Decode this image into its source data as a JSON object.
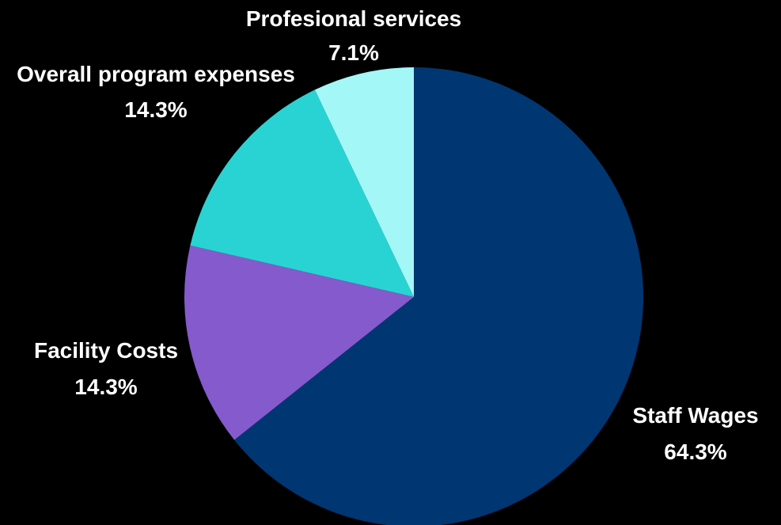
{
  "chart_data": {
    "type": "pie",
    "title": "",
    "start_angle_deg": 0,
    "direction": "clockwise",
    "slices": [
      {
        "label": "Staff Wages",
        "value": 64.3,
        "value_label": "64.3%",
        "color": "#003672"
      },
      {
        "label": "Facility Costs",
        "value": 14.3,
        "value_label": "14.3%",
        "color": "#845ACD"
      },
      {
        "label": "Overall program expenses",
        "value": 14.3,
        "value_label": "14.3%",
        "color": "#29D3D3"
      },
      {
        "label": "Profesional services",
        "value": 7.1,
        "value_label": "7.1%",
        "color": "#A3F7F7"
      }
    ],
    "legend": "none"
  }
}
